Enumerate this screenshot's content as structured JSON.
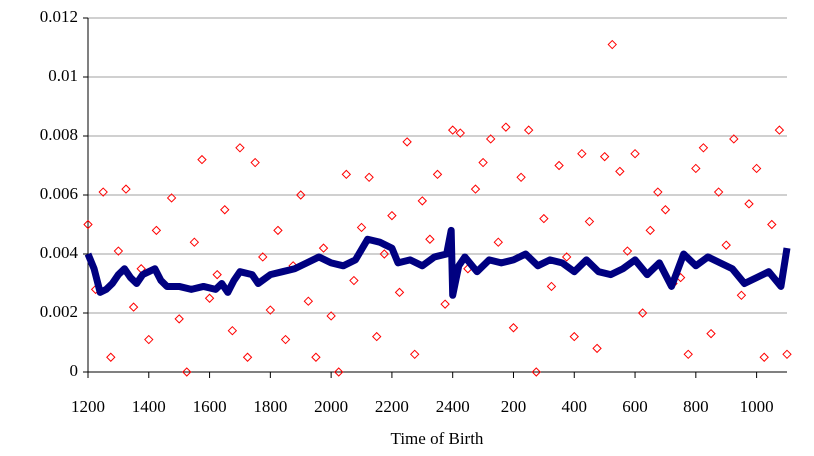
{
  "chart_data": {
    "type": "scatter",
    "x_label": "Time of Birth",
    "xlim": [
      1200,
      3500
    ],
    "ylim": [
      0,
      0.012
    ],
    "xticks": [
      1200,
      1400,
      1600,
      1800,
      2000,
      2200,
      2400,
      {
        "value": 2600,
        "label": "200"
      },
      {
        "value": 2800,
        "label": "400"
      },
      {
        "value": 3000,
        "label": "600"
      },
      {
        "value": 3200,
        "label": "800"
      },
      {
        "value": 3400,
        "label": "1000"
      }
    ],
    "yticks": [
      0,
      0.002,
      0.004,
      0.006,
      0.008,
      0.01,
      0.012
    ],
    "grid": true,
    "series": [
      {
        "type": "scatter",
        "color": "#ff0000",
        "x": [
          1200,
          1225,
          1250,
          1275,
          1300,
          1325,
          1350,
          1375,
          1400,
          1425,
          1450,
          1475,
          1500,
          1525,
          1550,
          1575,
          1600,
          1625,
          1650,
          1675,
          1700,
          1725,
          1750,
          1775,
          1800,
          1825,
          1850,
          1875,
          1900,
          1925,
          1950,
          1975,
          2000,
          2025,
          2050,
          2075,
          2100,
          2125,
          2150,
          2175,
          2200,
          2225,
          2250,
          2275,
          2300,
          2325,
          2350,
          2375,
          2400,
          2425,
          2450,
          2475,
          2500,
          2525,
          2550,
          2575,
          2600,
          2625,
          2650,
          2675,
          2700,
          2725,
          2750,
          2775,
          2800,
          2825,
          2850,
          2875,
          2900,
          2925,
          2950,
          2975,
          3000,
          3025,
          3050,
          3075,
          3100,
          3125,
          3150,
          3175,
          3200,
          3225,
          3250,
          3275,
          3300,
          3325,
          3350,
          3375,
          3400,
          3425,
          3450,
          3475,
          3500
        ],
        "values": [
          0.005,
          0.0028,
          0.0061,
          0.0005,
          0.0041,
          0.0062,
          0.0022,
          0.0035,
          0.0011,
          0.0048,
          0.003,
          0.0059,
          0.0018,
          0.0,
          0.0044,
          0.0072,
          0.0025,
          0.0033,
          0.0055,
          0.0014,
          0.0076,
          0.0005,
          0.0071,
          0.0039,
          0.0021,
          0.0048,
          0.0011,
          0.0036,
          0.006,
          0.0024,
          0.0005,
          0.0042,
          0.0019,
          0.0,
          0.0067,
          0.0031,
          0.0049,
          0.0066,
          0.0012,
          0.004,
          0.0053,
          0.0027,
          0.0078,
          0.0006,
          0.0058,
          0.0045,
          0.0067,
          0.0023,
          0.0082,
          0.0081,
          0.0035,
          0.0062,
          0.0071,
          0.0079,
          0.0044,
          0.0083,
          0.0015,
          0.0066,
          0.0082,
          0.0,
          0.0052,
          0.0029,
          0.007,
          0.0039,
          0.0012,
          0.0074,
          0.0051,
          0.0008,
          0.0073,
          0.0111,
          0.0068,
          0.0041,
          0.0074,
          0.002,
          0.0048,
          0.0061,
          0.0055,
          0.003,
          0.0032,
          0.0006,
          0.0069,
          0.0076,
          0.0013,
          0.0061,
          0.0043,
          0.0079,
          0.0026,
          0.0057,
          0.0069,
          0.0005,
          0.005,
          0.0082,
          0.0006
        ]
      },
      {
        "type": "line",
        "color": "#000080",
        "x": [
          1200,
          1220,
          1240,
          1260,
          1280,
          1300,
          1320,
          1340,
          1360,
          1380,
          1400,
          1420,
          1440,
          1460,
          1500,
          1540,
          1580,
          1620,
          1640,
          1660,
          1680,
          1700,
          1740,
          1760,
          1800,
          1840,
          1880,
          1920,
          1960,
          2000,
          2040,
          2080,
          2120,
          2160,
          2200,
          2220,
          2260,
          2300,
          2340,
          2380,
          2395,
          2400,
          2420,
          2440,
          2480,
          2520,
          2560,
          2600,
          2640,
          2680,
          2720,
          2760,
          2800,
          2840,
          2880,
          2920,
          2960,
          3000,
          3040,
          3080,
          3120,
          3160,
          3200,
          3240,
          3280,
          3320,
          3360,
          3400,
          3440,
          3480,
          3500
        ],
        "values": [
          0.004,
          0.0035,
          0.0027,
          0.0028,
          0.003,
          0.0033,
          0.0035,
          0.0032,
          0.003,
          0.0033,
          0.0034,
          0.0035,
          0.0031,
          0.0029,
          0.0029,
          0.0028,
          0.0029,
          0.0028,
          0.003,
          0.0027,
          0.0031,
          0.0034,
          0.0033,
          0.003,
          0.0033,
          0.0034,
          0.0035,
          0.0037,
          0.0039,
          0.0037,
          0.0036,
          0.0038,
          0.0045,
          0.0044,
          0.0042,
          0.0037,
          0.0038,
          0.0036,
          0.0039,
          0.004,
          0.0048,
          0.0026,
          0.0036,
          0.0039,
          0.0034,
          0.0038,
          0.0037,
          0.0038,
          0.004,
          0.0036,
          0.0038,
          0.0037,
          0.0034,
          0.0038,
          0.0034,
          0.0033,
          0.0035,
          0.0038,
          0.0033,
          0.0037,
          0.0029,
          0.004,
          0.0036,
          0.0039,
          0.0037,
          0.0035,
          0.003,
          0.0032,
          0.0034,
          0.0029,
          0.0042
        ]
      }
    ]
  }
}
